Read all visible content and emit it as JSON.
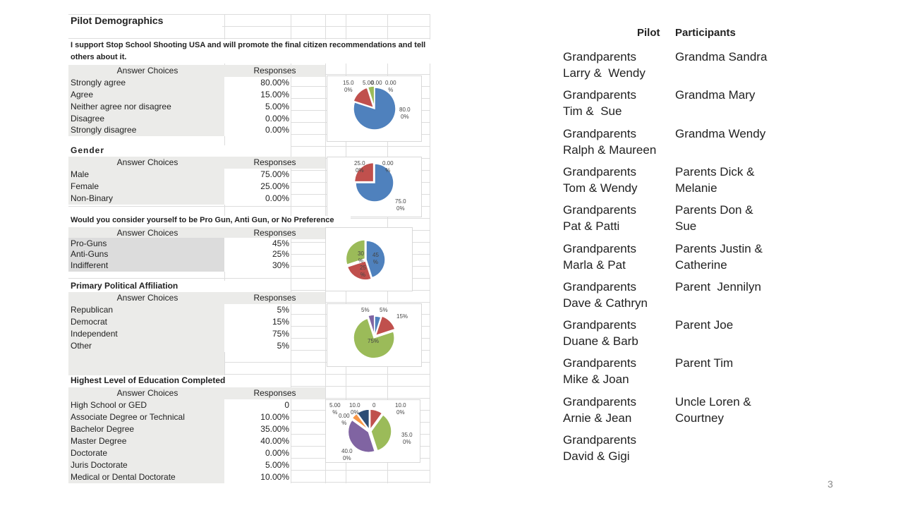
{
  "sheet": {
    "title": "Pilot Demographics",
    "sections": [
      {
        "title": "I support Stop School Shooting USA and will promote the final citizen recommendations and tell others about it.",
        "header": [
          "Answer Choices",
          "Responses"
        ],
        "rows": [
          [
            "Strongly agree",
            "80.00%"
          ],
          [
            "Agree",
            "15.00%"
          ],
          [
            "Neither agree nor disagree",
            "5.00%"
          ],
          [
            "Disagree",
            "0.00%"
          ],
          [
            "Strongly disagree",
            "0.00%"
          ]
        ]
      },
      {
        "title": "Gender",
        "header": [
          "Answer Choices",
          "Responses"
        ],
        "rows": [
          [
            "Male",
            "75.00%"
          ],
          [
            "Female",
            "25.00%"
          ],
          [
            "Non-Binary",
            "0.00%"
          ]
        ]
      },
      {
        "title": "Would you consider yourself to be Pro Gun, Anti Gun, or No Preference",
        "header": [
          "Answer Choices",
          "Responses"
        ],
        "rows": [
          [
            "Pro-Guns",
            "45%"
          ],
          [
            "Anti-Guns",
            "25%"
          ],
          [
            "Indifferent",
            "30%"
          ]
        ]
      },
      {
        "title": "Primary Political Affiliation",
        "header": [
          "Answer Choices",
          "Responses"
        ],
        "rows": [
          [
            "Republican",
            "5%"
          ],
          [
            "Democrat",
            "15%"
          ],
          [
            "Independent",
            "75%"
          ],
          [
            "Other",
            "5%"
          ]
        ]
      },
      {
        "title": "Highest Level of Education Completed",
        "header": [
          "Answer Choices",
          "Responses"
        ],
        "rows": [
          [
            "High School or GED",
            "0"
          ],
          [
            "Associate Degree or Technical",
            "10.00%"
          ],
          [
            "Bachelor Degree",
            "35.00%"
          ],
          [
            "Master Degree",
            "40.00%"
          ],
          [
            "Doctorate",
            "0.00%"
          ],
          [
            "Juris Doctorate",
            "5.00%"
          ],
          [
            "Medical or Dental Doctorate",
            "10.00%"
          ]
        ]
      }
    ]
  },
  "chart_data": [
    {
      "type": "pie",
      "categories": [
        "Strongly agree",
        "Agree",
        "Neither agree nor disagree",
        "Disagree",
        "Strongly disagree"
      ],
      "values": [
        80,
        15,
        5,
        0,
        0
      ],
      "colors": [
        "#4f81bd",
        "#c0504d",
        "#9bbb59",
        "#8064a2",
        "#4bacc6"
      ],
      "data_labels": [
        "80.0\n0%",
        "15.0\n0%",
        "5.00",
        "0.00",
        "0.00\n%"
      ]
    },
    {
      "type": "pie",
      "categories": [
        "Male",
        "Female",
        "Non-Binary"
      ],
      "values": [
        75,
        25,
        0
      ],
      "colors": [
        "#4f81bd",
        "#c0504d",
        "#9bbb59"
      ],
      "data_labels": [
        "75.0\n0%",
        "25.0\n0%",
        "0.00\n%"
      ]
    },
    {
      "type": "pie",
      "categories": [
        "Pro-Guns",
        "Anti-Guns",
        "Indifferent"
      ],
      "values": [
        45,
        25,
        30
      ],
      "colors": [
        "#4f81bd",
        "#c0504d",
        "#9bbb59"
      ],
      "data_labels": [
        "45\n%",
        "25\n%",
        "30\n%"
      ]
    },
    {
      "type": "pie",
      "categories": [
        "Republican",
        "Democrat",
        "Independent",
        "Other"
      ],
      "values": [
        5,
        15,
        75,
        5
      ],
      "colors": [
        "#4f81bd",
        "#c0504d",
        "#9bbb59",
        "#8064a2"
      ],
      "data_labels": [
        "5%",
        "15%",
        "75%",
        "5%"
      ]
    },
    {
      "type": "pie",
      "categories": [
        "High School or GED",
        "Associate Degree or Technical",
        "Bachelor Degree",
        "Master Degree",
        "Doctorate",
        "Juris Doctorate",
        "Medical or Dental Doctorate"
      ],
      "values": [
        0,
        10,
        35,
        40,
        0,
        5,
        10
      ],
      "colors": [
        "#4f81bd",
        "#c0504d",
        "#9bbb59",
        "#8064a2",
        "#4bacc6",
        "#f79646",
        "#2c4d75"
      ],
      "data_labels": [
        "0",
        "10.0\n0%",
        "35.0\n0%",
        "40.0\n0%",
        "0.00\n%",
        "5.00\n%",
        "10.0\n0%"
      ]
    }
  ],
  "pilots": {
    "headers": [
      "Pilot",
      "Participants"
    ],
    "rows": [
      [
        "Grandparents\nLarry &  Wendy",
        "Grandma Sandra"
      ],
      [
        "Grandparents\nTim &  Sue",
        "Grandma Mary"
      ],
      [
        "Grandparents\nRalph & Maureen",
        "Grandma Wendy"
      ],
      [
        "Grandparents\nTom & Wendy",
        "Parents Dick &\nMelanie"
      ],
      [
        "Grandparents\nPat & Patti",
        "Parents Don &\nSue"
      ],
      [
        "Grandparents\nMarla & Pat",
        "Parents Justin &\nCatherine"
      ],
      [
        "Grandparents\nDave & Cathryn",
        "Parent  Jennilyn"
      ],
      [
        "Grandparents\nDuane & Barb",
        "Parent Joe"
      ],
      [
        "Grandparents\nMike & Joan",
        "Parent Tim"
      ],
      [
        "Grandparents\nArnie & Jean",
        "Uncle Loren &\nCourtney"
      ],
      [
        "Grandparents\nDavid & Gigi",
        ""
      ]
    ]
  },
  "page_number": "3"
}
